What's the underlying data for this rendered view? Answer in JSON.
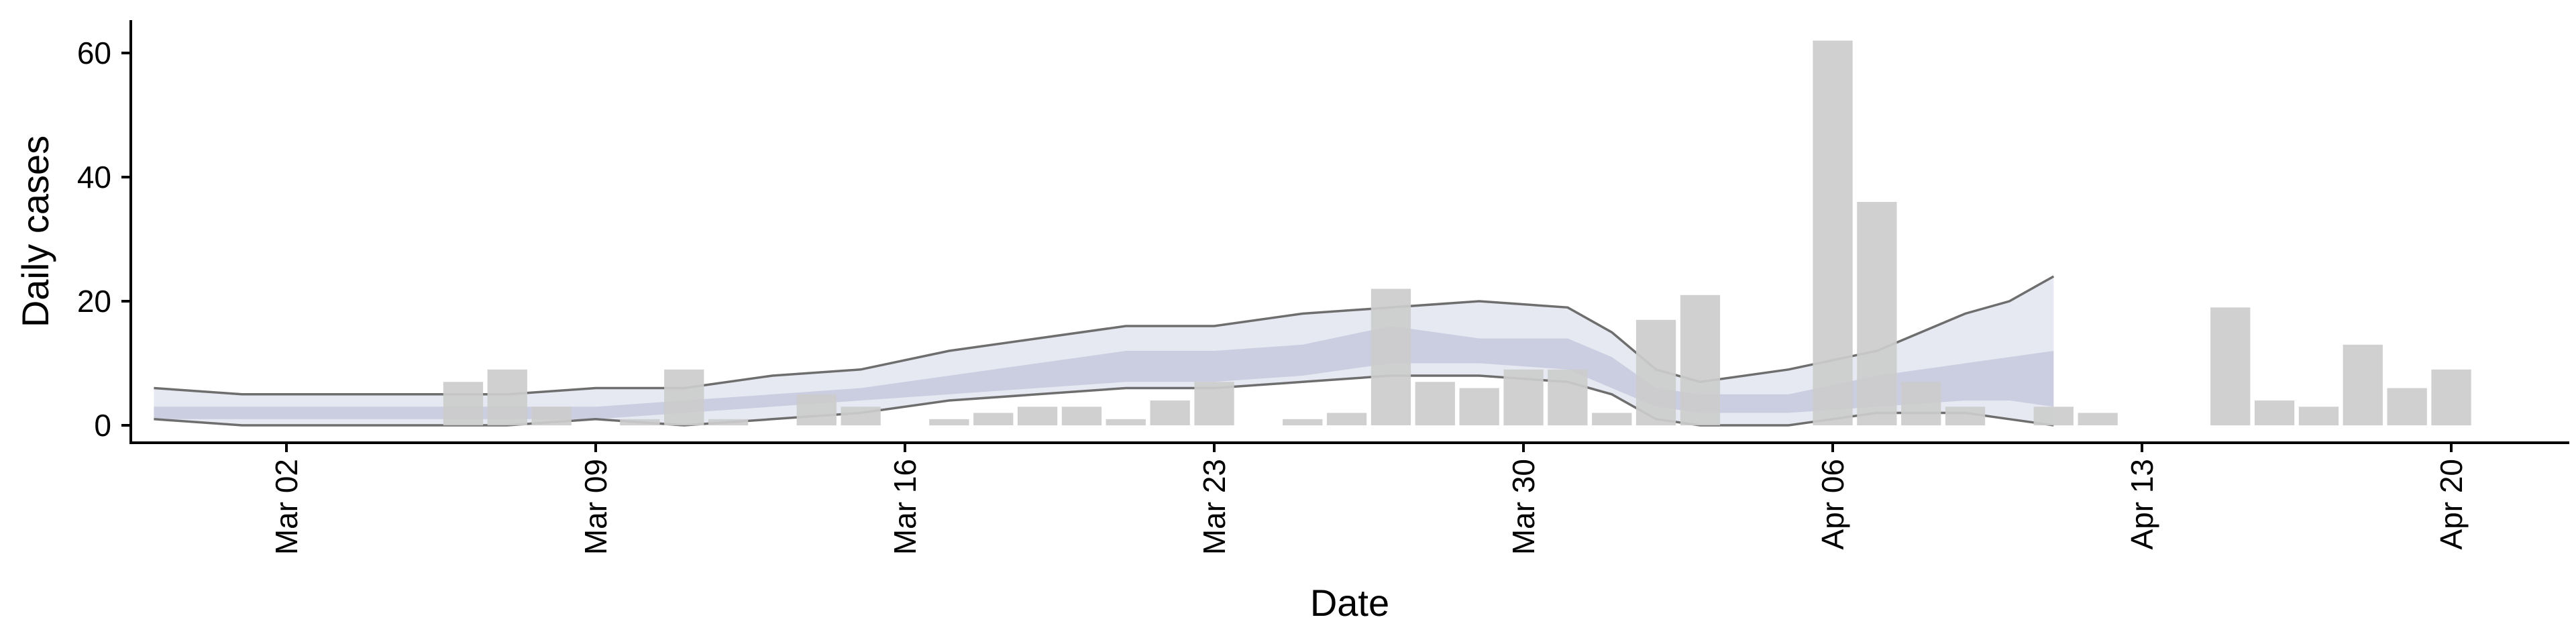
{
  "chart_data": {
    "type": "bar",
    "title": "",
    "xlabel": "Date",
    "ylabel": "Daily cases",
    "x_ticks": [
      {
        "date": "2020-03-02",
        "label": "Mar 02"
      },
      {
        "date": "2020-03-09",
        "label": "Mar 09"
      },
      {
        "date": "2020-03-16",
        "label": "Mar 16"
      },
      {
        "date": "2020-03-23",
        "label": "Mar 23"
      },
      {
        "date": "2020-03-30",
        "label": "Mar 30"
      },
      {
        "date": "2020-04-06",
        "label": "Apr 06"
      },
      {
        "date": "2020-04-13",
        "label": "Apr 13"
      },
      {
        "date": "2020-04-20",
        "label": "Apr 20"
      }
    ],
    "y_ticks": [
      0,
      20,
      40,
      60
    ],
    "xlim": [
      "2020-02-25",
      "2020-04-23"
    ],
    "ylim": [
      -3,
      65
    ],
    "grid": false,
    "legend": "none",
    "colors": {
      "bars": "#cccccc",
      "band_outer": "#dfe2ee",
      "band_inner": "#c4c9dd",
      "band_line": "#6e6e6e"
    },
    "bars": {
      "dates": [
        "2020-03-06",
        "2020-03-07",
        "2020-03-08",
        "2020-03-10",
        "2020-03-11",
        "2020-03-12",
        "2020-03-14",
        "2020-03-15",
        "2020-03-17",
        "2020-03-18",
        "2020-03-19",
        "2020-03-20",
        "2020-03-21",
        "2020-03-22",
        "2020-03-23",
        "2020-03-25",
        "2020-03-26",
        "2020-03-27",
        "2020-03-28",
        "2020-03-29",
        "2020-03-30",
        "2020-03-31",
        "2020-04-01",
        "2020-04-02",
        "2020-04-03",
        "2020-04-06",
        "2020-04-07",
        "2020-04-08",
        "2020-04-09",
        "2020-04-11",
        "2020-04-12",
        "2020-04-15",
        "2020-04-16",
        "2020-04-17",
        "2020-04-18",
        "2020-04-19",
        "2020-04-20"
      ],
      "values": [
        7,
        9,
        3,
        1,
        9,
        1,
        5,
        3,
        1,
        2,
        3,
        3,
        1,
        4,
        7,
        1,
        2,
        22,
        7,
        6,
        9,
        9,
        2,
        17,
        21,
        62,
        36,
        7,
        3,
        3,
        2,
        19,
        4,
        3,
        13,
        6,
        9
      ]
    },
    "band": {
      "dates": [
        "2020-02-28",
        "2020-03-01",
        "2020-03-03",
        "2020-03-05",
        "2020-03-07",
        "2020-03-09",
        "2020-03-11",
        "2020-03-13",
        "2020-03-15",
        "2020-03-17",
        "2020-03-19",
        "2020-03-21",
        "2020-03-23",
        "2020-03-25",
        "2020-03-27",
        "2020-03-29",
        "2020-03-31",
        "2020-04-01",
        "2020-04-02",
        "2020-04-03",
        "2020-04-05",
        "2020-04-07",
        "2020-04-09",
        "2020-04-10",
        "2020-04-11"
      ],
      "outer_upper": [
        6,
        5,
        5,
        5,
        5,
        6,
        6,
        8,
        9,
        12,
        14,
        16,
        16,
        18,
        19,
        20,
        19,
        15,
        9,
        7,
        9,
        12,
        18,
        20,
        24
      ],
      "outer_lower": [
        1,
        0,
        0,
        0,
        0,
        1,
        0,
        1,
        2,
        4,
        5,
        6,
        6,
        7,
        8,
        8,
        7,
        5,
        1,
        0,
        0,
        2,
        2,
        1,
        0
      ],
      "inner_upper": [
        3,
        3,
        3,
        3,
        3,
        3,
        4,
        5,
        6,
        8,
        10,
        12,
        12,
        13,
        16,
        14,
        14,
        11,
        6,
        5,
        5,
        8,
        10,
        11,
        12
      ],
      "inner_lower": [
        1,
        1,
        1,
        1,
        1,
        1,
        2,
        3,
        4,
        5,
        6,
        7,
        7,
        8,
        10,
        10,
        9,
        6,
        3,
        2,
        2,
        3,
        4,
        4,
        3
      ]
    }
  }
}
